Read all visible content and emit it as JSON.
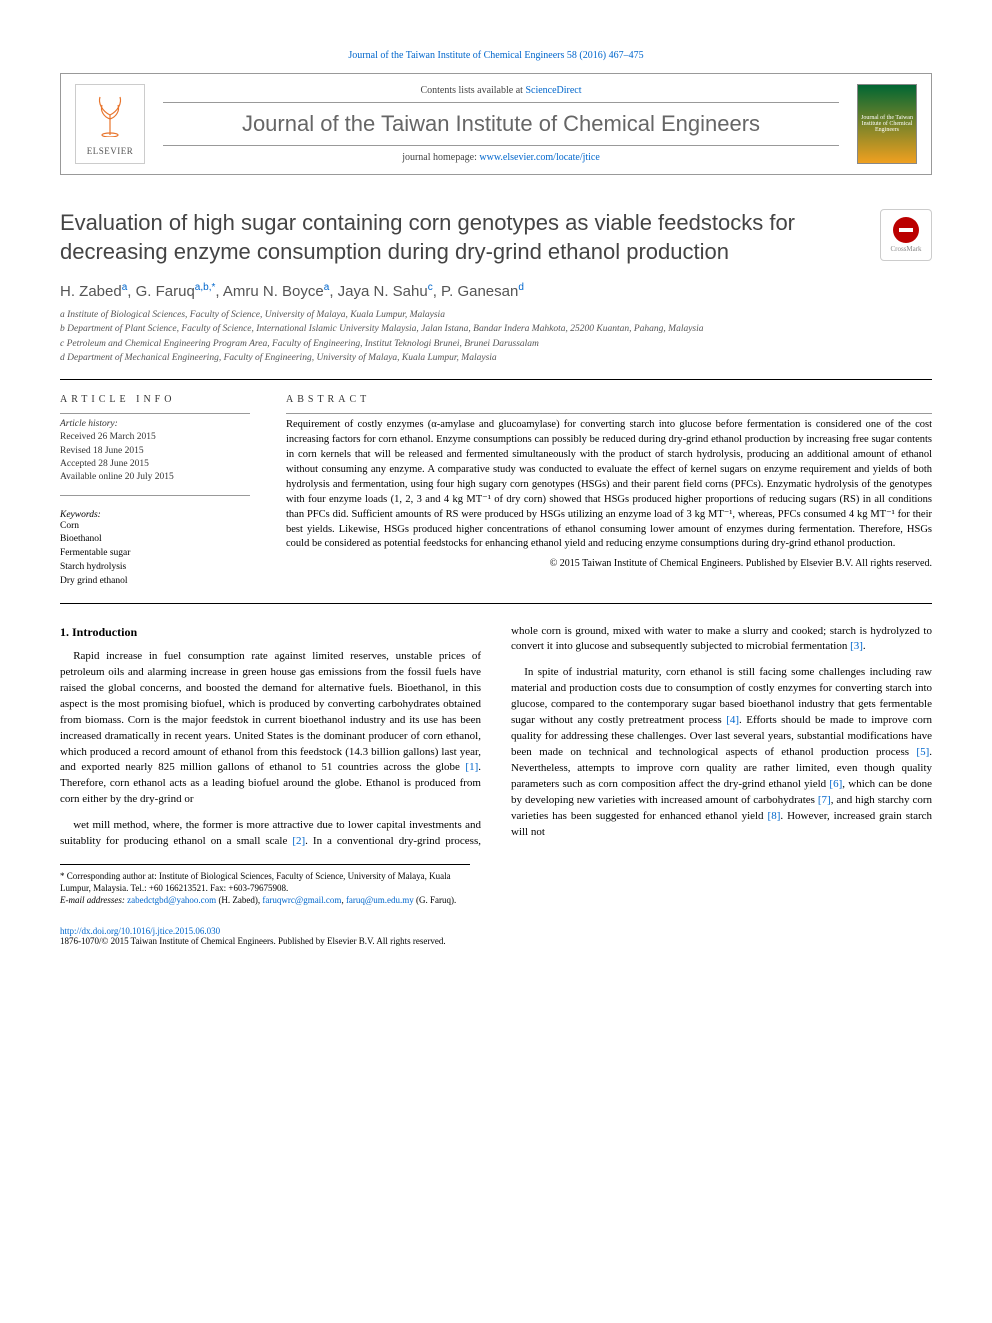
{
  "header": {
    "top_link_label": "Journal of the Taiwan Institute of Chemical Engineers 58 (2016) 467–475",
    "contents_prefix": "Contents lists available at ",
    "contents_link": "ScienceDirect",
    "journal_name": "Journal of the Taiwan Institute of Chemical Engineers",
    "homepage_prefix": "journal homepage: ",
    "homepage_url": "www.elsevier.com/locate/jtice",
    "elsevier_label": "ELSEVIER",
    "cover_text": "Journal of the Taiwan Institute of Chemical Engineers"
  },
  "article": {
    "title": "Evaluation of high sugar containing corn genotypes as viable feedstocks for decreasing enzyme consumption during dry-grind ethanol production",
    "crossmark_label": "CrossMark",
    "authors_html": "H. Zabed<sup>a</sup>, G. Faruq<sup>a,b,*</sup>, Amru N. Boyce<sup>a</sup>, Jaya N. Sahu<sup>c</sup>, P. Ganesan<sup>d</sup>",
    "affiliations": [
      "a Institute of Biological Sciences, Faculty of Science, University of Malaya, Kuala Lumpur, Malaysia",
      "b Department of Plant Science, Faculty of Science, International Islamic University Malaysia, Jalan Istana, Bandar Indera Mahkota, 25200 Kuantan, Pahang, Malaysia",
      "c Petroleum and Chemical Engineering Program Area, Faculty of Engineering, Institut Teknologi Brunei, Brunei Darussalam",
      "d Department of Mechanical Engineering, Faculty of Engineering, University of Malaya, Kuala Lumpur, Malaysia"
    ]
  },
  "info": {
    "heading": "ARTICLE INFO",
    "history_label": "Article history:",
    "received": "Received 26 March 2015",
    "revised": "Revised 18 June 2015",
    "accepted": "Accepted 28 June 2015",
    "online": "Available online 20 July 2015",
    "keywords_label": "Keywords:",
    "keywords": [
      "Corn",
      "Bioethanol",
      "Fermentable sugar",
      "Starch hydrolysis",
      "Dry grind ethanol"
    ]
  },
  "abstract": {
    "heading": "ABSTRACT",
    "text": "Requirement of costly enzymes (α-amylase and glucoamylase) for converting starch into glucose before fermentation is considered one of the cost increasing factors for corn ethanol. Enzyme consumptions can possibly be reduced during dry-grind ethanol production by increasing free sugar contents in corn kernels that will be released and fermented simultaneously with the product of starch hydrolysis, producing an additional amount of ethanol without consuming any enzyme. A comparative study was conducted to evaluate the effect of kernel sugars on enzyme requirement and yields of both hydrolysis and fermentation, using four high sugary corn genotypes (HSGs) and their parent field corns (PFCs). Enzymatic hydrolysis of the genotypes with four enzyme loads (1, 2, 3 and 4 kg MT⁻¹ of dry corn) showed that HSGs produced higher proportions of reducing sugars (RS) in all conditions than PFCs did. Sufficient amounts of RS were produced by HSGs utilizing an enzyme load of 3 kg MT⁻¹, whereas, PFCs consumed 4 kg MT⁻¹ for their best yields. Likewise, HSGs produced higher concentrations of ethanol consuming lower amount of enzymes during fermentation. Therefore, HSGs could be considered as potential feedstocks for enhancing ethanol yield and reducing enzyme consumptions during dry-grind ethanol production.",
    "copyright": "© 2015 Taiwan Institute of Chemical Engineers. Published by Elsevier B.V. All rights reserved."
  },
  "body": {
    "section_heading": "1. Introduction",
    "p1": "Rapid increase in fuel consumption rate against limited reserves, unstable prices of petroleum oils and alarming increase in green house gas emissions from the fossil fuels have raised the global concerns, and boosted the demand for alternative fuels. Bioethanol, in this aspect is the most promising biofuel, which is produced by converting carbohydrates obtained from biomass. Corn is the major feedstok in current bioethanol industry and its use has been increased dramatically in recent years. United States is the dominant producer of corn ethanol, which produced a record amount of ethanol from this feedstock (14.3 billion gallons) last year, and exported nearly 825 million gallons of ethanol to 51 countries across the globe ",
    "p1_ref": "[1]",
    "p1_tail": ". Therefore, corn ethanol acts as a leading biofuel around the globe. Ethanol is produced from corn either by the dry-grind or",
    "p2a": "wet mill method, where, the former is more attractive due to lower capital investments and suitablity for producing ethanol on a small scale ",
    "p2_ref1": "[2]",
    "p2b": ". In a conventional dry-grind process, whole corn is ground, mixed with water to make a slurry and cooked; starch is hydrolyzed to convert it into glucose and subsequently subjected to microbial fermentation ",
    "p2_ref2": "[3]",
    "p2c": ".",
    "p3a": "In spite of industrial maturity, corn ethanol is still facing some challenges including raw material and production costs due to consumption of costly enzymes for converting starch into glucose, compared to the contemporary sugar based bioethanol industry that gets fermentable sugar without any costly pretreatment process ",
    "p3_ref1": "[4]",
    "p3b": ". Efforts should be made to improve corn quality for addressing these challenges. Over last several years, substantial modifications have been made on technical and technological aspects of ethanol production process ",
    "p3_ref2": "[5]",
    "p3c": ". Nevertheless, attempts to improve corn quality are rather limited, even though quality parameters such as corn composition affect the dry-grind ethanol yield ",
    "p3_ref3": "[6]",
    "p3d": ", which can be done by developing new varieties with increased amount of carbohydrates ",
    "p3_ref4": "[7]",
    "p3e": ", and high starchy corn varieties has been suggested for enhanced ethanol yield ",
    "p3_ref5": "[8]",
    "p3f": ". However, increased grain starch will not"
  },
  "footnote": {
    "corr": "* Corresponding author at: Institute of Biological Sciences, Faculty of Science, University of Malaya, Kuala Lumpur, Malaysia. Tel.: +60 166213521. Fax: +603-79675908.",
    "email_label": "E-mail addresses: ",
    "email1": "zabedctgbd@yahoo.com",
    "email1_name": " (H. Zabed), ",
    "email2": "faruqwrc@gmail.com",
    "email2_tail": ", ",
    "email3": "faruq@um.edu.my",
    "email3_name": " (G. Faruq)."
  },
  "footer": {
    "doi": "http://dx.doi.org/10.1016/j.jtice.2015.06.030",
    "issn_copy": "1876-1070/© 2015 Taiwan Institute of Chemical Engineers. Published by Elsevier B.V. All rights reserved."
  },
  "colors": {
    "link": "#0066cc",
    "elsevier_orange": "#e8742c",
    "text_gray": "#555555",
    "rule": "#000000"
  }
}
